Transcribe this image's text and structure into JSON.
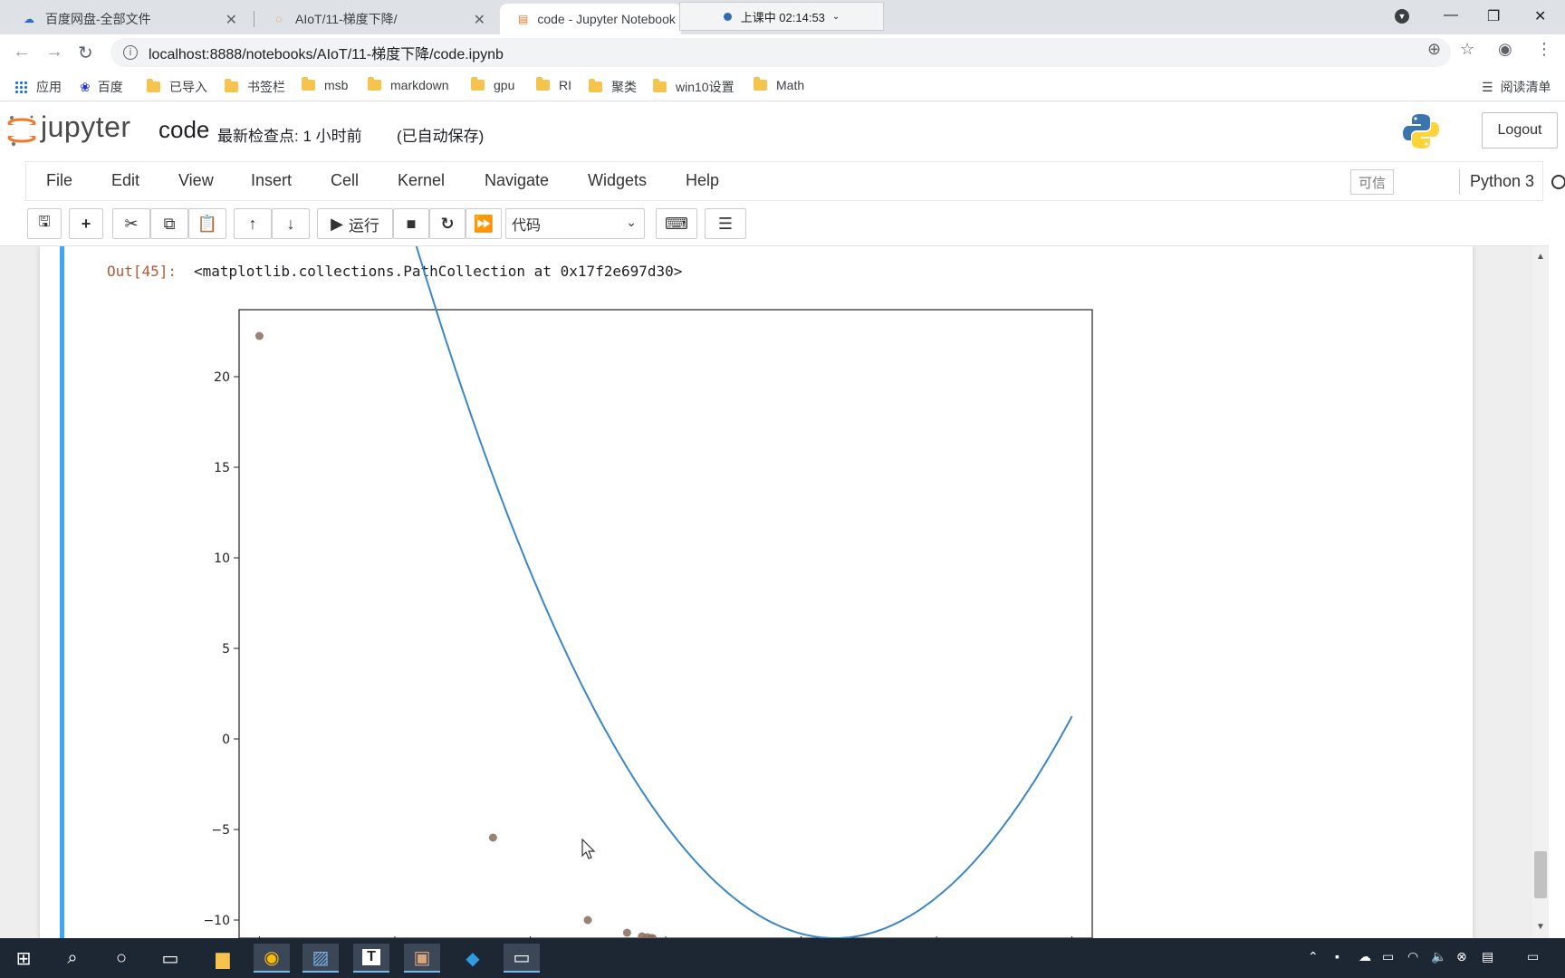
{
  "browser": {
    "tabs": [
      {
        "title": "百度网盘-全部文件",
        "active": false
      },
      {
        "title": "AIoT/11-梯度下降/",
        "active": false
      },
      {
        "title": "code - Jupyter Notebook",
        "active": true
      }
    ],
    "recording": "上课中 02:14:53",
    "url": "localhost:8888/notebooks/AIoT/11-梯度下降/code.ipynb",
    "bookmarks": [
      "应用",
      "百度",
      "已导入",
      "书签栏",
      "msb",
      "markdown",
      "gpu",
      "RI",
      "聚类",
      "win10设置",
      "Math"
    ],
    "reading_list": "阅读清单"
  },
  "jupyter": {
    "logo_text": "jupyter",
    "notebook_name": "code",
    "checkpoint": "最新检查点: 1 小时前",
    "autosave": "(已自动保存)",
    "logout": "Logout",
    "menu": [
      "File",
      "Edit",
      "View",
      "Insert",
      "Cell",
      "Kernel",
      "Navigate",
      "Widgets",
      "Help"
    ],
    "trusted": "可信",
    "kernel": "Python 3",
    "run_label": "运行",
    "cell_type": "代码"
  },
  "output": {
    "prompt": "Out[45]:",
    "text": "<matplotlib.collections.PathCollection at 0x17f2e697d30>"
  },
  "colors": {
    "curve": "#3a87c8",
    "points": "#8a6a5c",
    "cell_selected": "#42a5f5"
  },
  "chart_data": {
    "type": "line",
    "title": "",
    "xlabel": "",
    "ylabel": "",
    "ylim": [
      -12.3,
      23.7
    ],
    "xlim": [
      -6.3,
      6.3
    ],
    "yticks": [
      20,
      15,
      10,
      5,
      0,
      -5,
      -10
    ],
    "series": [
      {
        "kind": "line",
        "formula": "y = (x - 2.5)^2 - 11",
        "x_range": [
          -6,
          6
        ]
      },
      {
        "kind": "scatter",
        "x": [
          -6.0,
          -2.55,
          -1.15,
          -0.57,
          -0.35,
          -0.27,
          -0.22,
          -0.19
        ],
        "y": [
          22.25,
          -5.45,
          -10.0,
          -10.7,
          -10.9,
          -10.95,
          -11.0,
          -11.0
        ]
      }
    ]
  }
}
